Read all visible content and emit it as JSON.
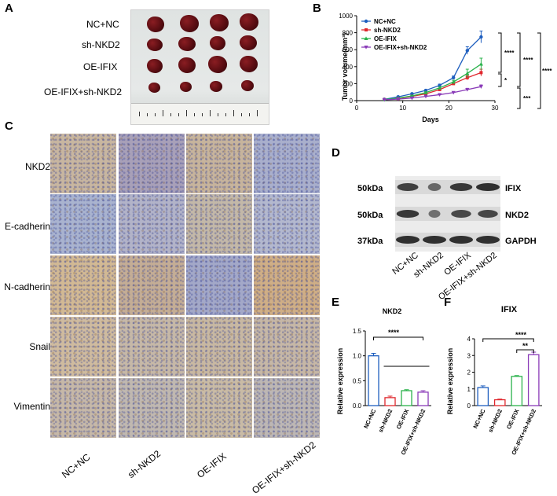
{
  "panels": {
    "A": {
      "label": "A",
      "groups": [
        "NC+NC",
        "sh-NKD2",
        "OE-IFIX",
        "OE-IFIX+sh-NKD2"
      ]
    },
    "B": {
      "label": "B"
    },
    "C": {
      "label": "C",
      "rows": [
        "NKD2",
        "E-cadherin",
        "N-cadherin",
        "Snail",
        "Vimentin"
      ],
      "cols": [
        "NC+NC",
        "sh-NKD2",
        "OE-IFIX",
        "OE-IFIX+sh-NKD2"
      ]
    },
    "D": {
      "label": "D",
      "bands": [
        {
          "kda": "50kDa",
          "name": "IFIX"
        },
        {
          "kda": "50kDa",
          "name": "NKD2"
        },
        {
          "kda": "37kDa",
          "name": "GAPDH"
        }
      ],
      "lanes": [
        "NC+NC",
        "sh-NKD2",
        "OE-IFIX",
        "OE-IFIX+sh-NKD2"
      ]
    },
    "E": {
      "label": "E"
    },
    "F": {
      "label": "F"
    }
  },
  "chart_data": [
    {
      "id": "B",
      "type": "line",
      "title": "",
      "xlabel": "Days",
      "ylabel": "Tumor volume(mm³)",
      "xlim": [
        0,
        30
      ],
      "ylim": [
        0,
        1000
      ],
      "xticks": [
        0,
        10,
        20,
        30
      ],
      "yticks": [
        0,
        200,
        400,
        600,
        800,
        1000
      ],
      "x": [
        6,
        9,
        12,
        15,
        18,
        21,
        24,
        27
      ],
      "legend_position": "top-left",
      "series": [
        {
          "name": "NC+NC",
          "color": "#1f5fbf",
          "marker": "circle",
          "values": [
            15,
            45,
            80,
            120,
            180,
            270,
            590,
            750
          ],
          "errors": [
            3,
            6,
            8,
            10,
            14,
            20,
            45,
            70
          ]
        },
        {
          "name": "sh-NKD2",
          "color": "#e0282e",
          "marker": "square",
          "values": [
            12,
            25,
            50,
            80,
            130,
            200,
            270,
            330
          ],
          "errors": [
            2,
            4,
            6,
            8,
            10,
            15,
            25,
            40
          ]
        },
        {
          "name": "OE-IFIX",
          "color": "#2bb24c",
          "marker": "triangle-up",
          "values": [
            12,
            30,
            55,
            95,
            150,
            220,
            320,
            430
          ],
          "errors": [
            2,
            4,
            6,
            8,
            12,
            20,
            50,
            70
          ]
        },
        {
          "name": "OE-IFIX+sh-NKD2",
          "color": "#8a3bb8",
          "marker": "triangle-down",
          "values": [
            10,
            18,
            30,
            50,
            70,
            95,
            130,
            165
          ],
          "errors": [
            2,
            3,
            4,
            5,
            7,
            10,
            15,
            20
          ]
        }
      ],
      "significance": [
        "****",
        "****",
        "****",
        "*",
        "***"
      ]
    },
    {
      "id": "E",
      "type": "bar",
      "title": "NKD2",
      "xlabel": "",
      "ylabel": "Relative expression",
      "ylim": [
        0,
        1.5
      ],
      "yticks": [
        0.0,
        0.5,
        1.0,
        1.5
      ],
      "categories": [
        "NC+NC",
        "sh-NKD2",
        "OE-IFIX",
        "OE-IFIX+sh-NKD2"
      ],
      "values": [
        1.0,
        0.16,
        0.3,
        0.27
      ],
      "errors": [
        0.05,
        0.03,
        0.02,
        0.03
      ],
      "colors": [
        "#1f5fbf",
        "#e0282e",
        "#2bb24c",
        "#8a3bb8"
      ],
      "significance": [
        "****"
      ]
    },
    {
      "id": "F",
      "type": "bar",
      "title": "IFIX",
      "xlabel": "",
      "ylabel": "Relative expression",
      "ylim": [
        0,
        4
      ],
      "yticks": [
        0,
        1,
        2,
        3,
        4
      ],
      "categories": [
        "NC+NC",
        "sh-NKD2",
        "OE-IFIX",
        "OE-IFIX+sh-NKD2"
      ],
      "values": [
        1.08,
        0.35,
        1.75,
        3.05
      ],
      "errors": [
        0.1,
        0.04,
        0.05,
        0.15
      ],
      "colors": [
        "#1f5fbf",
        "#e0282e",
        "#2bb24c",
        "#8a3bb8"
      ],
      "significance": [
        "****",
        "**"
      ]
    }
  ]
}
